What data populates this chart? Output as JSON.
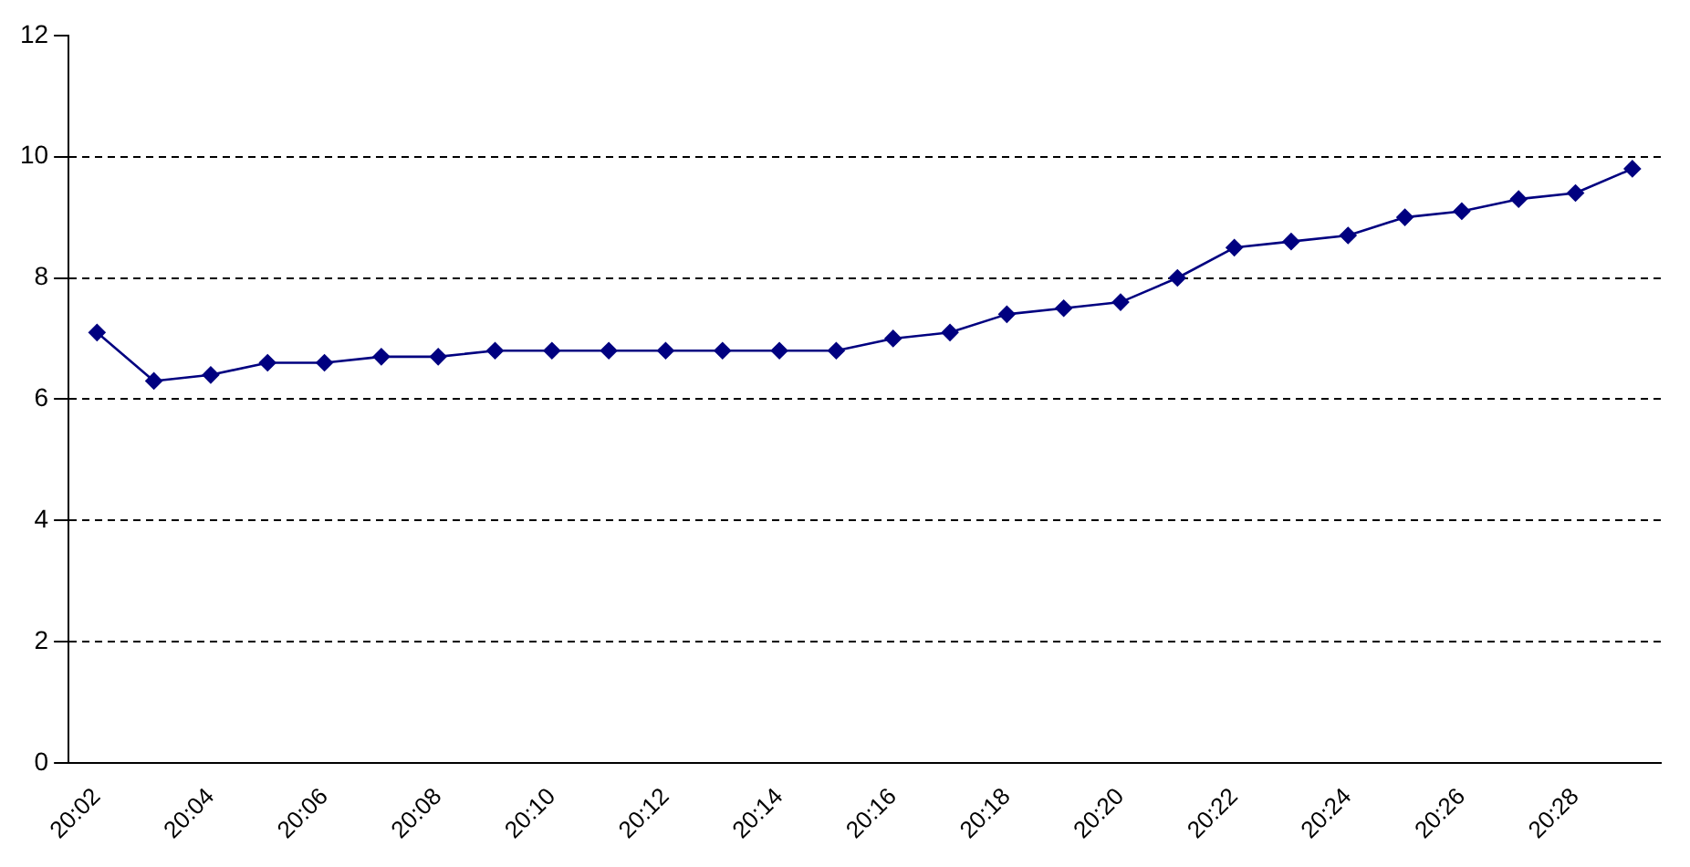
{
  "chart_data": {
    "type": "line",
    "categories": [
      "20:02",
      null,
      "20:04",
      null,
      "20:06",
      null,
      "20:08",
      null,
      "20:10",
      null,
      "20:12",
      null,
      "20:14",
      null,
      "20:16",
      null,
      "20:18",
      null,
      "20:20",
      null,
      "20:22",
      null,
      "20:24",
      null,
      "20:26",
      null,
      "20:28",
      null
    ],
    "series": [
      {
        "color": "#000080",
        "values": [
          7.1,
          6.3,
          6.4,
          6.6,
          6.6,
          6.7,
          6.7,
          6.8,
          6.8,
          6.8,
          6.8,
          6.8,
          6.8,
          6.8,
          7.0,
          7.1,
          7.4,
          7.5,
          7.6,
          8.0,
          8.5,
          8.6,
          8.7,
          9.0,
          9.1,
          9.3,
          9.4,
          9.8
        ]
      }
    ],
    "ylim": [
      0,
      12
    ],
    "yticks": [
      0,
      2,
      4,
      6,
      8,
      10,
      12
    ],
    "grid": "y",
    "legend": false,
    "marker": "diamond",
    "line_style": "solid"
  }
}
